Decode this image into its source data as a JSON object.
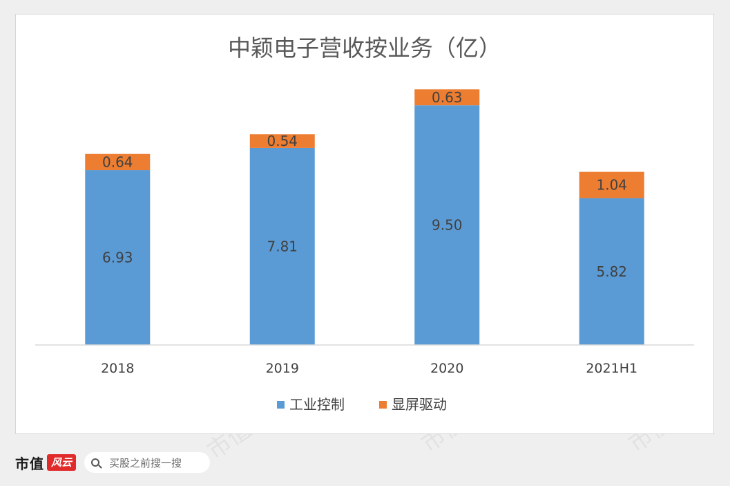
{
  "watermark": "市值风云",
  "footer": {
    "brand": "市值",
    "logo": "风云",
    "search_placeholder": "买股之前搜一搜"
  },
  "colors": {
    "industrial": "#5b9bd5",
    "display": "#ed7d31",
    "axis": "#d9d9d9",
    "text": "#404040",
    "title": "#595959"
  },
  "chart_data": {
    "type": "bar",
    "stacked": true,
    "title": "中颖电子营收按业务（亿）",
    "categories": [
      "2018",
      "2019",
      "2020",
      "2021H1"
    ],
    "series": [
      {
        "name": "工业控制",
        "values": [
          6.93,
          7.81,
          9.5,
          5.82
        ],
        "color": "#5b9bd5"
      },
      {
        "name": "显屏驱动",
        "values": [
          0.64,
          0.54,
          0.63,
          1.04
        ],
        "color": "#ed7d31"
      }
    ],
    "ylim": [
      0,
      12
    ],
    "grid": false,
    "legend": "bottom",
    "xlabel": "",
    "ylabel": ""
  }
}
